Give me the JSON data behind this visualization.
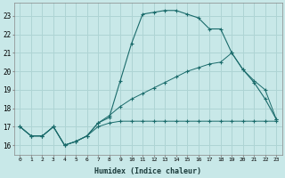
{
  "bg_color": "#c8e8e8",
  "grid_color": "#aed4d4",
  "line_color": "#1a6b6b",
  "xlabel": "Humidex (Indice chaleur)",
  "xlim": [
    -0.5,
    23.5
  ],
  "ylim": [
    15.5,
    23.7
  ],
  "yticks": [
    16,
    17,
    18,
    19,
    20,
    21,
    22,
    23
  ],
  "xticks": [
    0,
    1,
    2,
    3,
    4,
    5,
    6,
    7,
    8,
    9,
    10,
    11,
    12,
    13,
    14,
    15,
    16,
    17,
    18,
    19,
    20,
    21,
    22,
    23
  ],
  "line1_x": [
    0,
    1,
    2,
    3,
    4,
    5,
    6,
    7,
    8,
    9,
    10,
    11,
    12,
    13,
    14,
    15,
    16,
    17,
    18,
    19,
    20,
    21,
    22,
    23
  ],
  "line1_y": [
    17.0,
    16.5,
    16.5,
    17.0,
    16.0,
    16.2,
    16.5,
    17.2,
    17.5,
    19.5,
    21.5,
    23.1,
    23.2,
    23.3,
    23.3,
    23.1,
    22.9,
    22.3,
    22.3,
    21.0,
    20.1,
    19.4,
    18.5,
    17.4
  ],
  "line2_x": [
    0,
    1,
    2,
    3,
    4,
    5,
    6,
    7,
    8,
    9,
    10,
    11,
    12,
    13,
    14,
    15,
    16,
    17,
    18,
    19,
    20,
    21,
    22,
    23
  ],
  "line2_y": [
    17.0,
    16.5,
    16.5,
    17.0,
    16.0,
    16.2,
    16.5,
    17.0,
    17.2,
    17.3,
    17.3,
    17.3,
    17.3,
    17.3,
    17.3,
    17.3,
    17.3,
    17.3,
    17.3,
    17.3,
    17.3,
    17.3,
    17.3,
    17.3
  ],
  "line3_x": [
    0,
    1,
    2,
    3,
    4,
    5,
    6,
    7,
    8,
    9,
    10,
    11,
    12,
    13,
    14,
    15,
    16,
    17,
    18,
    19,
    20,
    21,
    22,
    23
  ],
  "line3_y": [
    17.0,
    16.5,
    16.5,
    17.0,
    16.0,
    16.2,
    16.5,
    17.2,
    17.6,
    18.1,
    18.5,
    18.8,
    19.1,
    19.4,
    19.7,
    20.0,
    20.2,
    20.4,
    20.5,
    21.0,
    20.1,
    19.5,
    19.0,
    17.4
  ]
}
